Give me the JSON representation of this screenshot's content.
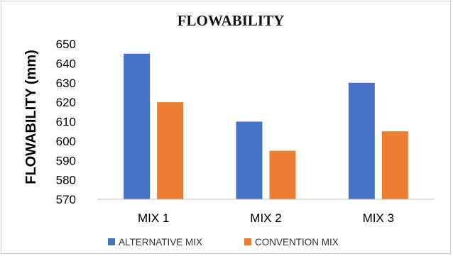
{
  "chart_data": {
    "type": "bar",
    "title": "FLOWABILITY",
    "xlabel": "",
    "ylabel": "FLOWABILITY (mm)",
    "categories": [
      "MIX 1",
      "MIX 2",
      "MIX 3"
    ],
    "series": [
      {
        "name": "ALTERNATIVE MIX",
        "values": [
          645,
          610,
          630
        ],
        "color": "#4472c4"
      },
      {
        "name": "CONVENTION MIX",
        "values": [
          620,
          595,
          605
        ],
        "color": "#ed7d31"
      }
    ],
    "ylim": [
      570,
      650
    ],
    "yticks": [
      570,
      580,
      590,
      600,
      610,
      620,
      630,
      640,
      650
    ],
    "grid": false,
    "legend_position": "bottom"
  }
}
